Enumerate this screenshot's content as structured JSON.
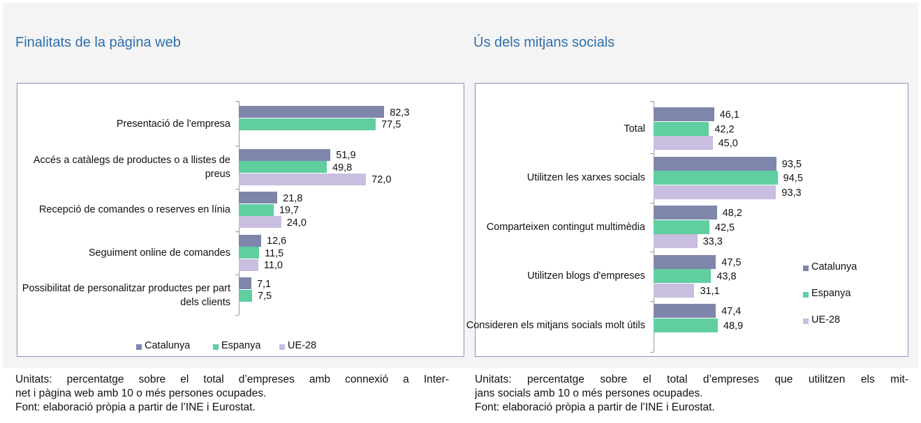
{
  "chart_data": [
    {
      "type": "bar",
      "orientation": "horizontal",
      "title": "Finalitats de la pàgina web",
      "categories": [
        "Presentació de l'empresa",
        "Accés a catàlegs de productes o a llistes de preus",
        "Recepció de comandes o reserves en línia",
        "Seguiment online de comandes",
        "Possibilitat de personalitzar productes per part dels clients"
      ],
      "xlim": [
        0,
        100
      ],
      "legend": "bottom",
      "series": [
        {
          "name": "Catalunya",
          "color": "#7f86ab",
          "values": [
            82.3,
            51.9,
            21.8,
            12.6,
            7.1
          ],
          "value_labels": [
            "82,3",
            "51,9",
            "21,8",
            "12,6",
            "7,1"
          ]
        },
        {
          "name": "Espanya",
          "color": "#5fcfa0",
          "values": [
            77.5,
            49.8,
            19.7,
            11.5,
            7.5
          ],
          "value_labels": [
            "77,5",
            "49,8",
            "19,7",
            "11,5",
            "7,5"
          ]
        },
        {
          "name": "UE-28",
          "color": "#c9bde0",
          "values": [
            null,
            72.0,
            24.0,
            11.0,
            null
          ],
          "value_labels": [
            null,
            "72,0",
            "24,0",
            "11,0",
            null
          ]
        }
      ],
      "notes": [
        "Unitats: percentatge sobre el total d’empreses amb connexió a Inter-",
        "net i pàgina web amb 10 o més persones ocupades.",
        "Font: elaboració pròpia a partir de l’INE i Eurostat."
      ]
    },
    {
      "type": "bar",
      "orientation": "horizontal",
      "title": "Ús dels mitjans socials",
      "categories": [
        "Total",
        "Utilitzen les xarxes socials",
        "Comparteixen contingut multimèdia",
        "Utilitzen blogs d'empreses",
        "Consideren els mitjans socials molt útils"
      ],
      "xlim": [
        0,
        100
      ],
      "legend": "right",
      "series": [
        {
          "name": "Catalunya",
          "color": "#7f86ab",
          "values": [
            46.1,
            93.5,
            48.2,
            47.5,
            47.4
          ],
          "value_labels": [
            "46,1",
            "93,5",
            "48,2",
            "47,5",
            "47,4"
          ]
        },
        {
          "name": "Espanya",
          "color": "#5fcfa0",
          "values": [
            42.2,
            94.5,
            42.5,
            43.8,
            48.9
          ],
          "value_labels": [
            "42,2",
            "94,5",
            "42,5",
            "43,8",
            "48,9"
          ]
        },
        {
          "name": "UE-28",
          "color": "#c9bde0",
          "values": [
            45.0,
            93.3,
            33.3,
            31.1,
            null
          ],
          "value_labels": [
            "45,0",
            "93,3",
            "33,3",
            "31,1",
            null
          ]
        }
      ],
      "notes": [
        "Unitats: percentatge sobre el total d’empreses que utilitzen els mit-",
        "jans socials amb 10 o més persones ocupades.",
        "Font: elaboració pròpia a partir de l’INE i Eurostat."
      ]
    }
  ]
}
